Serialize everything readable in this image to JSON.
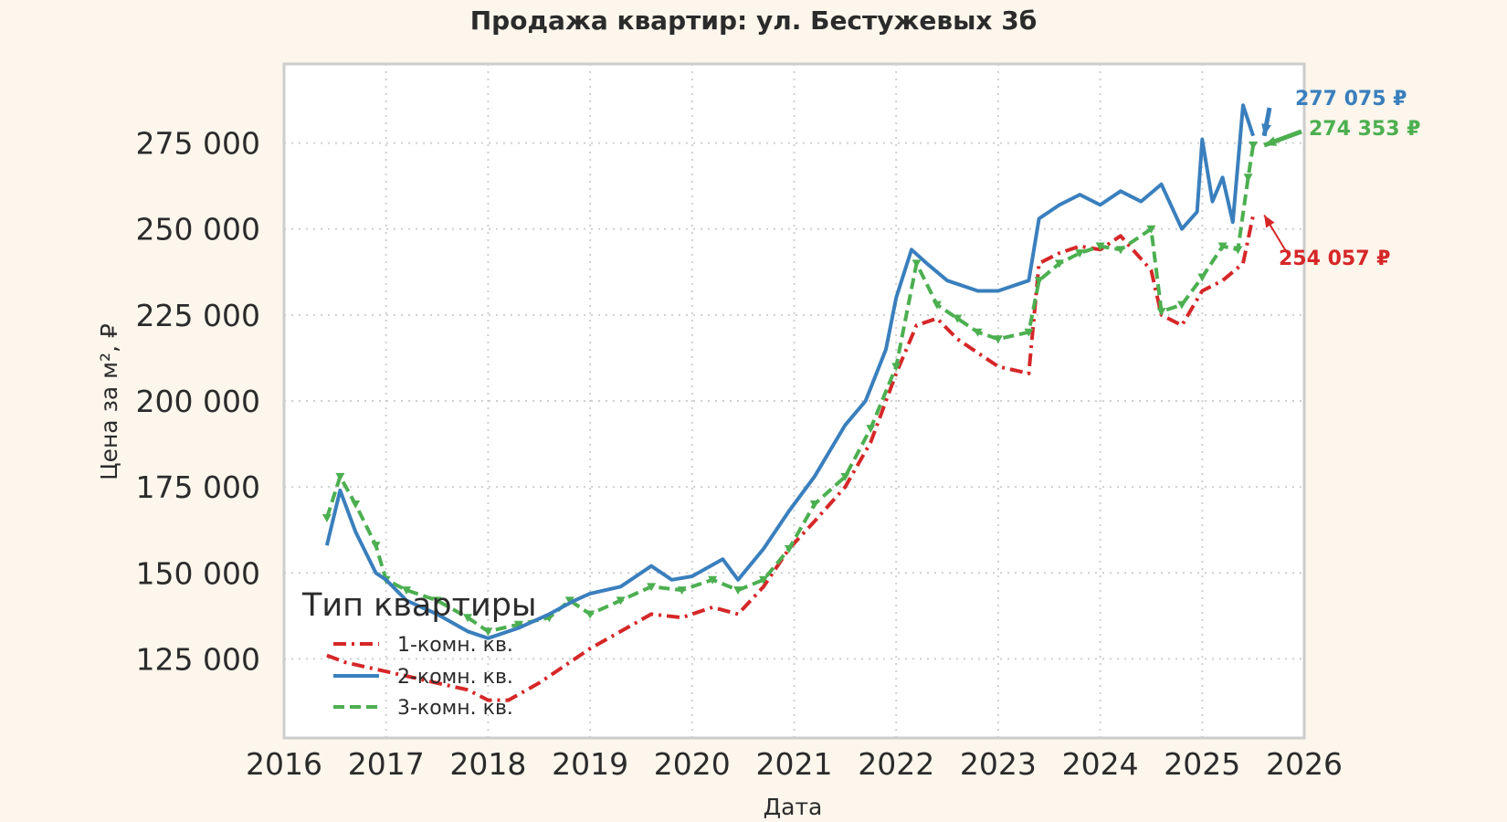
{
  "colors": {
    "one_room": "#d62728",
    "two_room": "#3a7fbd",
    "three_room": "#4caf50",
    "background": "#fdf6ec",
    "plot_bg": "#ffffff"
  },
  "chart_data": {
    "type": "line",
    "title": "Продажа квартир: ул. Бестужевых 3б",
    "xlabel": "Дата",
    "ylabel": "Цена за м², ₽",
    "xlim": [
      2016,
      2026
    ],
    "ylim": [
      102000,
      298000
    ],
    "x_ticks": [
      2016,
      2017,
      2018,
      2019,
      2020,
      2021,
      2022,
      2023,
      2024,
      2025,
      2026
    ],
    "x_tick_labels": [
      "2016",
      "2017",
      "2018",
      "2019",
      "2020",
      "2021",
      "2022",
      "2023",
      "2024",
      "2025",
      "2026"
    ],
    "y_ticks": [
      125000,
      150000,
      175000,
      200000,
      225000,
      250000,
      275000
    ],
    "y_tick_labels": [
      "125 000",
      "150 000",
      "175 000",
      "200 000",
      "225 000",
      "250 000",
      "275 000"
    ],
    "grid": true,
    "legend": {
      "title": "Тип квартиры",
      "position": "bottom-left",
      "entries": [
        "1-комн. кв.",
        "2-комн. кв.",
        "3-комн. кв."
      ]
    },
    "series": [
      {
        "name": "1-комн. кв.",
        "color_key": "one_room",
        "style": "dash-dot",
        "x": [
          2016.42,
          2016.6,
          2016.9,
          2017.2,
          2017.5,
          2017.8,
          2018.0,
          2018.2,
          2018.5,
          2018.8,
          2019.0,
          2019.3,
          2019.6,
          2019.9,
          2020.2,
          2020.45,
          2020.7,
          2020.95,
          2021.2,
          2021.5,
          2021.75,
          2022.0,
          2022.2,
          2022.4,
          2022.6,
          2022.8,
          2023.0,
          2023.3,
          2023.4,
          2023.6,
          2023.8,
          2024.0,
          2024.2,
          2024.5,
          2024.6,
          2024.8,
          2025.0,
          2025.2,
          2025.4,
          2025.5
        ],
        "y": [
          126000,
          124000,
          122000,
          120000,
          118000,
          116000,
          113000,
          113000,
          118000,
          124000,
          128000,
          133000,
          138000,
          137000,
          140000,
          138000,
          146000,
          157000,
          165000,
          175000,
          188000,
          208000,
          222000,
          224000,
          218000,
          214000,
          210000,
          208000,
          240000,
          243000,
          245000,
          244000,
          248000,
          238000,
          225000,
          222000,
          232000,
          235000,
          240000,
          254057
        ]
      },
      {
        "name": "2-комн. кв.",
        "color_key": "two_room",
        "style": "solid",
        "x": [
          2016.42,
          2016.55,
          2016.7,
          2016.9,
          2017.0,
          2017.2,
          2017.5,
          2017.8,
          2018.0,
          2018.3,
          2018.6,
          2018.85,
          2019.0,
          2019.3,
          2019.6,
          2019.8,
          2020.0,
          2020.3,
          2020.45,
          2020.7,
          2020.95,
          2021.2,
          2021.5,
          2021.7,
          2021.9,
          2022.0,
          2022.15,
          2022.3,
          2022.5,
          2022.8,
          2023.0,
          2023.3,
          2023.4,
          2023.6,
          2023.8,
          2024.0,
          2024.2,
          2024.4,
          2024.6,
          2024.8,
          2024.95,
          2025.0,
          2025.1,
          2025.2,
          2025.3,
          2025.4,
          2025.5
        ],
        "y": [
          158000,
          174000,
          162000,
          150000,
          148000,
          142000,
          138000,
          133000,
          131000,
          134000,
          138000,
          142000,
          144000,
          146000,
          152000,
          148000,
          149000,
          154000,
          148000,
          157000,
          168000,
          178000,
          193000,
          200000,
          215000,
          230000,
          244000,
          240000,
          235000,
          232000,
          232000,
          235000,
          253000,
          257000,
          260000,
          257000,
          261000,
          258000,
          263000,
          250000,
          255000,
          276000,
          258000,
          265000,
          252000,
          286000,
          277075
        ]
      },
      {
        "name": "3-комн. кв.",
        "color_key": "three_room",
        "style": "dashed-triangles",
        "x": [
          2016.42,
          2016.55,
          2016.7,
          2016.9,
          2017.0,
          2017.2,
          2017.5,
          2017.8,
          2018.0,
          2018.3,
          2018.6,
          2018.8,
          2019.0,
          2019.3,
          2019.6,
          2019.9,
          2020.2,
          2020.45,
          2020.7,
          2020.95,
          2021.2,
          2021.5,
          2021.75,
          2022.0,
          2022.2,
          2022.4,
          2022.6,
          2022.8,
          2023.0,
          2023.3,
          2023.4,
          2023.6,
          2023.8,
          2024.0,
          2024.2,
          2024.5,
          2024.6,
          2024.8,
          2025.0,
          2025.2,
          2025.35,
          2025.45,
          2025.5
        ],
        "y": [
          166000,
          178000,
          170000,
          158000,
          148000,
          145000,
          142000,
          137000,
          133000,
          135000,
          137000,
          142000,
          138000,
          142000,
          146000,
          145000,
          148000,
          145000,
          148000,
          157000,
          170000,
          178000,
          192000,
          210000,
          240000,
          228000,
          224000,
          220000,
          218000,
          220000,
          235000,
          240000,
          243000,
          245000,
          244000,
          250000,
          226000,
          228000,
          236000,
          245000,
          244000,
          265000,
          274353
        ]
      }
    ],
    "annotations": [
      {
        "text": "277 075 ₽",
        "series": "2-комн. кв.",
        "x": 2025.5,
        "y": 277075
      },
      {
        "text": "274 353 ₽",
        "series": "3-комн. кв.",
        "x": 2025.5,
        "y": 274353
      },
      {
        "text": "254 057 ₽",
        "series": "1-комн. кв.",
        "x": 2025.5,
        "y": 254057
      }
    ]
  }
}
